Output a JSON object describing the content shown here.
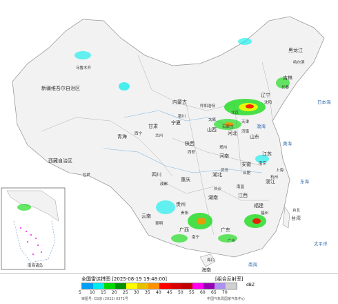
{
  "map": {
    "region_labels": [
      "黑龙江",
      "吉林",
      "辽宁",
      "内蒙古",
      "新疆维吾尔自治区",
      "西藏自治区",
      "青海",
      "甘肃",
      "宁夏",
      "陕西",
      "山西",
      "河北",
      "山东",
      "河南",
      "四川",
      "重庆",
      "湖北",
      "安徽",
      "江苏",
      "湖南",
      "江西",
      "浙江",
      "贵州",
      "云南",
      "广西",
      "广东",
      "福建",
      "台湾",
      "海南",
      "北京",
      "天津",
      "上海"
    ],
    "city_labels": [
      "哈尔滨",
      "长春",
      "沈阳",
      "呼和浩特",
      "乌鲁木齐",
      "拉萨",
      "西宁",
      "兰州",
      "银川",
      "西安",
      "太原",
      "石家庄",
      "济南",
      "郑州",
      "成都",
      "武汉",
      "合肥",
      "南京",
      "长沙",
      "南昌",
      "杭州",
      "贵阳",
      "昆明",
      "南宁",
      "广州",
      "福州",
      "台北",
      "海口"
    ],
    "sea_labels": [
      "渤海",
      "黄海",
      "东海",
      "南海",
      "日本海",
      "太平洋"
    ],
    "inset_labels": [
      "南海诸岛"
    ],
    "colors": {
      "land": "#f2f2f2",
      "sea": "#ffffff",
      "border": "#9a9a9a",
      "rivers": "#7fb3e0"
    }
  },
  "legend": {
    "title": "全国雷达拼图 [2025-08-19 19:48:00]",
    "subtitle": "[组合反射率]",
    "unit": "dBZ",
    "ticks": [
      "5",
      "10",
      "15",
      "20",
      "25",
      "30",
      "35",
      "40",
      "45",
      "50",
      "55",
      "60",
      "65",
      "70"
    ],
    "colors": [
      "#01a0f6",
      "#00ecec",
      "#00d800",
      "#019000",
      "#ffff00",
      "#e7c000",
      "#ff9000",
      "#ff0000",
      "#d60000",
      "#c00000",
      "#ff00f0",
      "#9600b4",
      "#ad90f0",
      "#d0d0d0"
    ],
    "credit_left": "审图号: GS京 (2022) 0372号",
    "credit_right": "中国气象局国家气象中心"
  }
}
